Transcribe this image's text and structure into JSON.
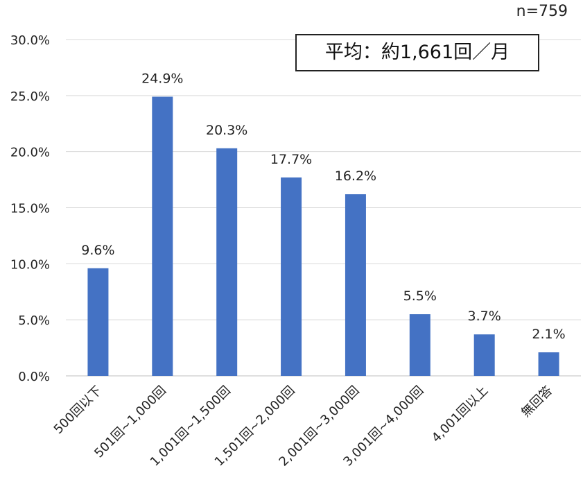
{
  "sample_size": "n=759",
  "average_label": "平均：約1,661回／月",
  "colors": {
    "bar": "#4472C4",
    "grid": "#d9d9d9",
    "axis": "#bfbfbf",
    "text": "#222222"
  },
  "chart_data": {
    "type": "bar",
    "title": "",
    "xlabel": "",
    "ylabel": "",
    "categories": [
      "500回以下",
      "501回~1,000回",
      "1,001回~1,500回",
      "1,501回~2,000回",
      "2,001回~3,000回",
      "3,001回~4,000回",
      "4,001回以上",
      "無回答"
    ],
    "values": [
      9.6,
      24.9,
      20.3,
      17.7,
      16.2,
      5.5,
      3.7,
      2.1
    ],
    "value_labels": [
      "9.6%",
      "24.9%",
      "20.3%",
      "17.7%",
      "16.2%",
      "5.5%",
      "3.7%",
      "2.1%"
    ],
    "ylim": [
      0,
      30
    ],
    "yticks": [
      0,
      5,
      10,
      15,
      20,
      25,
      30
    ],
    "ytick_labels": [
      "0.0%",
      "5.0%",
      "10.0%",
      "15.0%",
      "20.0%",
      "25.0%",
      "30.0%"
    ],
    "grid": true,
    "legend": "none"
  }
}
